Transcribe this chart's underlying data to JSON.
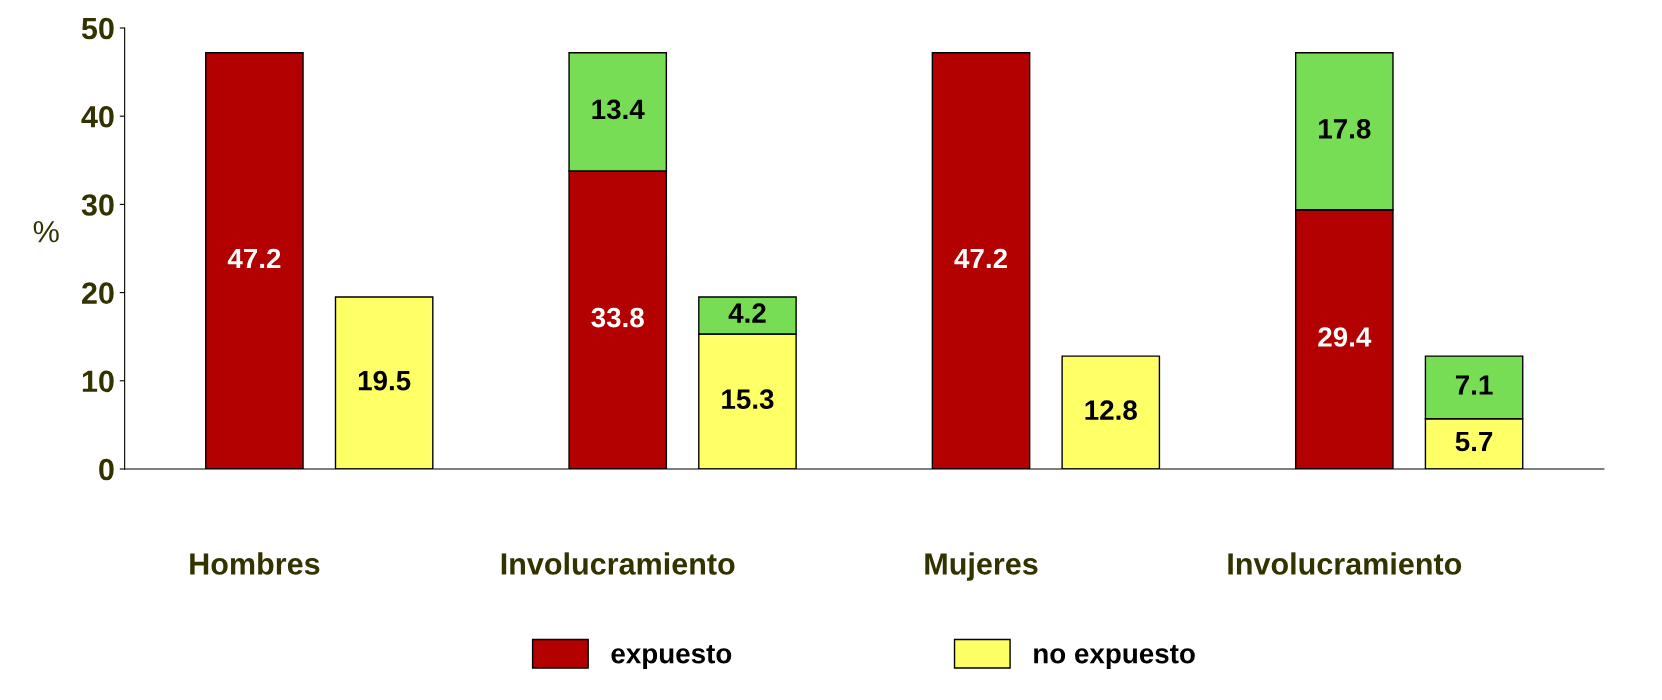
{
  "chart_data": {
    "type": "bar",
    "stacked": true,
    "ylabel": "%",
    "categories": [
      "Hombres",
      null,
      "Involucramiento",
      null,
      "Mujeres",
      null,
      "Involucramiento",
      null
    ],
    "series": [
      {
        "name": "expuesto",
        "color": "#b30000",
        "values": [
          47.2,
          null,
          33.8,
          null,
          47.2,
          null,
          29.4,
          null
        ]
      },
      {
        "name": "no expuesto",
        "color": "#ffff66",
        "values": [
          null,
          19.5,
          null,
          15.3,
          null,
          12.8,
          null,
          5.7
        ]
      },
      {
        "color": "#77dd55",
        "values": [
          null,
          null,
          13.4,
          4.2,
          null,
          null,
          17.8,
          7.1
        ]
      }
    ],
    "ylim": [
      0,
      50
    ],
    "yticks": [
      0,
      10,
      20,
      30,
      40,
      50
    ],
    "legend": "bottom",
    "data_labels": true
  }
}
